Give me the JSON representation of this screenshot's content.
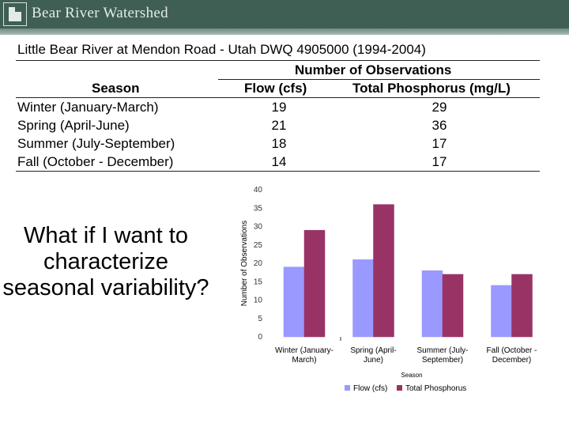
{
  "header": {
    "brand": "Bear River Watershed"
  },
  "table": {
    "title": "Little Bear River at Mendon Road - Utah DWQ 4905000 (1994-2004)",
    "group_header": "Number of Observations",
    "columns": [
      "Season",
      "Flow (cfs)",
      "Total Phosphorus (mg/L)"
    ],
    "rows": [
      {
        "season": "Winter (January-March)",
        "flow": "19",
        "tp": "29"
      },
      {
        "season": "Spring (April-June)",
        "flow": "21",
        "tp": "36"
      },
      {
        "season": "Summer (July-September)",
        "flow": "18",
        "tp": "17"
      },
      {
        "season": "Fall (October - December)",
        "flow": "14",
        "tp": "17"
      }
    ]
  },
  "question": "What if I want to characterize seasonal variability?",
  "colors": {
    "flow": "#9999ff",
    "tp": "#993366",
    "header": "#3f5f55"
  },
  "chart_data": {
    "type": "bar",
    "categories": [
      [
        "Winter (January-",
        "March)"
      ],
      [
        "Spring (April-",
        "June)"
      ],
      [
        "Summer (July-",
        "September)"
      ],
      [
        "Fall (October -",
        "December)"
      ]
    ],
    "series": [
      {
        "name": "Flow (cfs)",
        "values": [
          19,
          21,
          18,
          14
        ]
      },
      {
        "name": "Total Phosphorus",
        "values": [
          29,
          36,
          17,
          17
        ]
      }
    ],
    "xlabel": "Season",
    "ylabel": "Number of Observations",
    "ylim": [
      0,
      40
    ],
    "yticks": [
      "0",
      "5",
      "10",
      "15",
      "20",
      "25",
      "30",
      "35",
      "40"
    ],
    "grid": false,
    "legend": "bottom"
  }
}
